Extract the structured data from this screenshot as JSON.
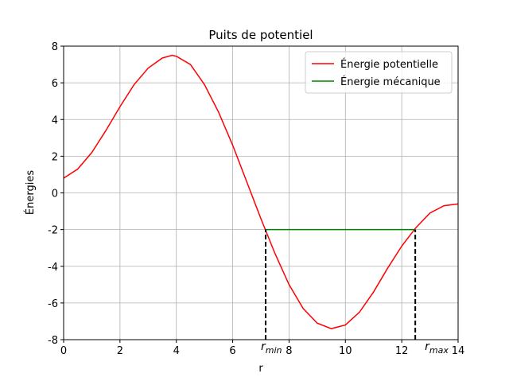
{
  "chart_data": {
    "type": "line",
    "title": "Puits de potentiel",
    "xlabel": "r",
    "ylabel": "Énergies",
    "xlim": [
      0,
      14
    ],
    "ylim": [
      -8,
      8
    ],
    "xticks": [
      0,
      2,
      4,
      6,
      8,
      10,
      12,
      14
    ],
    "yticks": [
      -8,
      -6,
      -4,
      -2,
      0,
      2,
      4,
      6,
      8
    ],
    "grid": true,
    "legend": "upper right",
    "series": [
      {
        "name": "Énergie potentielle",
        "color": "#ff0000",
        "x": [
          0,
          0.5,
          1,
          1.5,
          2,
          2.5,
          3,
          3.5,
          3.85,
          4,
          4.5,
          5,
          5.5,
          6,
          6.5,
          7,
          7.5,
          8,
          8.5,
          9,
          9.5,
          10,
          10.5,
          11,
          11.5,
          12,
          12.5,
          13,
          13.5,
          14
        ],
        "values": [
          0.8,
          1.3,
          2.2,
          3.4,
          4.7,
          5.9,
          6.8,
          7.35,
          7.5,
          7.45,
          7.0,
          5.9,
          4.4,
          2.6,
          0.6,
          -1.4,
          -3.3,
          -5.0,
          -6.3,
          -7.1,
          -7.4,
          -7.2,
          -6.5,
          -5.4,
          -4.1,
          -2.9,
          -1.9,
          -1.1,
          -0.7,
          -0.6
        ]
      },
      {
        "name": "Énergie mécanique",
        "color": "#008000",
        "x": [
          7.17,
          12.48
        ],
        "values": [
          -2,
          -2
        ],
        "drop_lines": "dashed"
      }
    ],
    "annotations": [
      {
        "text": "r",
        "sub": "min"
      },
      {
        "text": "r",
        "sub": "max"
      }
    ]
  }
}
